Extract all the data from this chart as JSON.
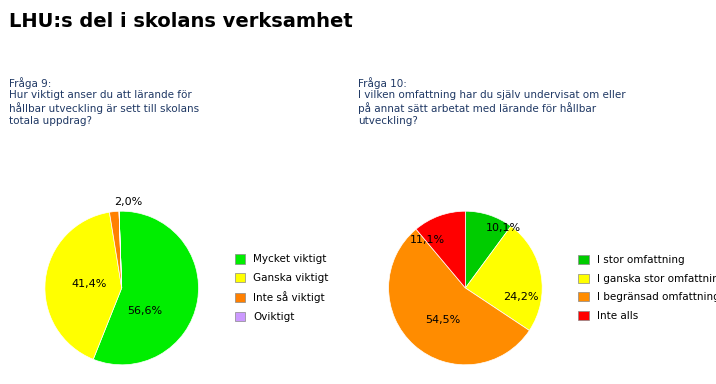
{
  "title": "LHU:s del i skolans verksamhet",
  "title_color": "#000000",
  "title_fontsize": 14,
  "q9_label": "Fråga 9:\nHur viktigt anser du att lärande för\nhållbar utveckling är sett till skolans\ntotala uppdrag?",
  "q10_label": "Fråga 10:\nI vilken omfattning har du själv undervisat om eller\npå annat sätt arbetat med lärande för hållbar\nutveckling?",
  "question_color": "#1F3864",
  "pie1_values": [
    56.6,
    41.4,
    2.0,
    0.001
  ],
  "pie1_labels": [
    "56,6%",
    "41,4%",
    "2,0%",
    ""
  ],
  "pie1_colors": [
    "#00EE00",
    "#FFFF00",
    "#FF8000",
    "#CC99FF"
  ],
  "pie1_legend_labels": [
    "Mycket viktigt",
    "Ganska viktigt",
    "Inte så viktigt",
    "Oviktigt"
  ],
  "pie2_values": [
    10.1,
    24.2,
    54.5,
    11.1
  ],
  "pie2_labels": [
    "10,1%",
    "24,2%",
    "54,5%",
    "11,1%"
  ],
  "pie2_colors": [
    "#00CC00",
    "#FFFF00",
    "#FF8C00",
    "#FF0000"
  ],
  "pie2_legend_labels": [
    "I stor omfattning",
    "I ganska stor omfattning",
    "I begränsad omfattning",
    "Inte alls"
  ],
  "background_color": "#FFFFFF",
  "label_fontsize": 8,
  "legend_fontsize": 7.5
}
